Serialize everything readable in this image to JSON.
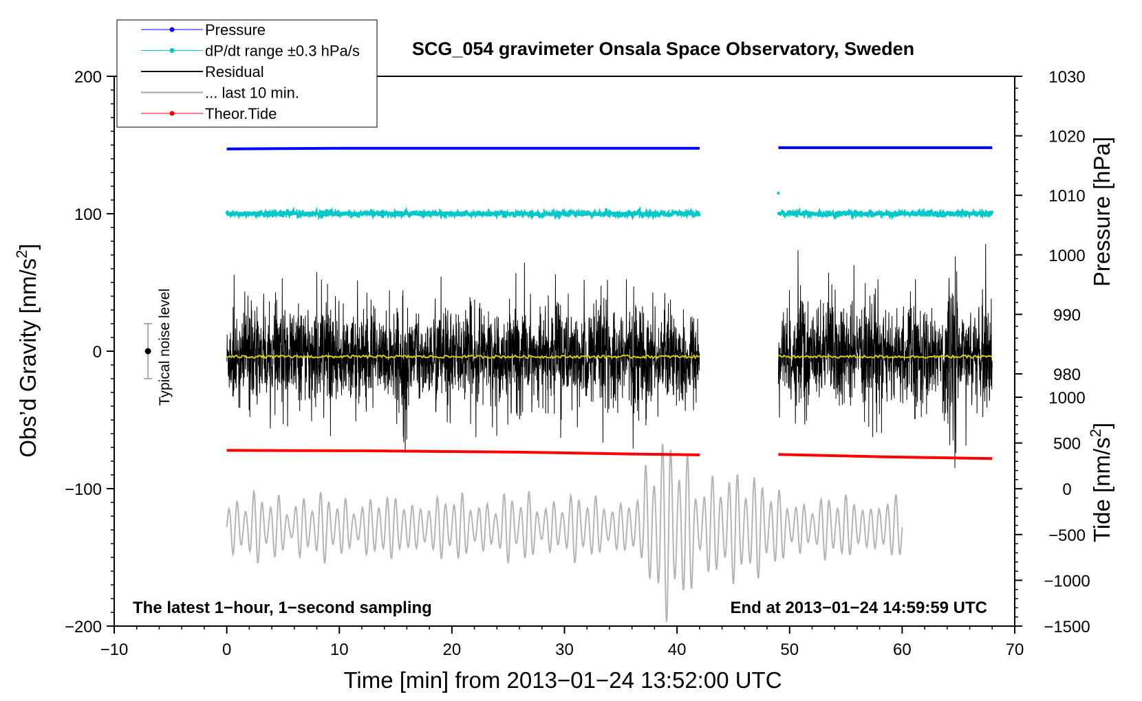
{
  "chart_data": {
    "type": "line",
    "title": "SCG_054 gravimeter Onsala Space Observatory, Sweden",
    "xlabel": "Time [min] from 2013−01−24 13:52:00 UTC",
    "ylabel_left": "Obs’d Gravity [nm/s",
    "ylabel_left_sup": "2",
    "ylabel_left_close": "]",
    "ylabel_pressure": "Pressure [hPa]",
    "ylabel_tide": "Tide [nm/s",
    "ylabel_tide_sup": "2",
    "ylabel_tide_close": "]",
    "xlim": [
      -10,
      70
    ],
    "ylim": [
      -200,
      200
    ],
    "x_ticks": [
      -10,
      0,
      10,
      20,
      30,
      40,
      50,
      60,
      70
    ],
    "x_tick_labels": [
      "−10",
      "0",
      "10",
      "20",
      "30",
      "40",
      "50",
      "60",
      "70"
    ],
    "y_ticks": [
      -200,
      -100,
      0,
      100,
      200
    ],
    "y_tick_labels": [
      "−200",
      "−100",
      "0",
      "100",
      "200"
    ],
    "pressure_axis": {
      "range": [
        970,
        1030
      ],
      "ticks": [
        980,
        990,
        1000,
        1010,
        1020,
        1030
      ],
      "tick_labels": [
        "980",
        "990",
        "1000",
        "1010",
        "1020",
        "1030"
      ]
    },
    "tide_axis": {
      "range": [
        -1500,
        1500
      ],
      "ticks": [
        -1500,
        -1000,
        -500,
        0,
        500,
        1000
      ],
      "tick_labels": [
        "−1500",
        "−1000",
        "−500",
        "0",
        "500",
        "1000"
      ]
    },
    "segments": [
      [
        0,
        42
      ],
      [
        49,
        68
      ]
    ],
    "legend": [
      {
        "label": "Pressure",
        "color": "#0000ff",
        "marker": true
      },
      {
        "label": "dP/dt range ±0.3 hPa/s",
        "color": "#00c8c8",
        "marker": true
      },
      {
        "label": "Residual",
        "color": "#000000",
        "marker": false
      },
      {
        "label": "... last 10 min.",
        "color": "#b4b4b4",
        "marker": false
      },
      {
        "label": "Theor.Tide",
        "color": "#ff0000",
        "marker": true
      }
    ],
    "series": [
      {
        "name": "Pressure",
        "axis": "pressure",
        "color": "#0000ff",
        "points": [
          [
            0,
            1017.8
          ],
          [
            10,
            1017.9
          ],
          [
            20,
            1017.9
          ],
          [
            30,
            1017.9
          ],
          [
            42,
            1017.9
          ],
          [
            49,
            1018.0
          ],
          [
            58,
            1018.0
          ],
          [
            68,
            1018.0
          ]
        ]
      },
      {
        "name": "dP/dt range ±0.3 hPa/s",
        "axis": "left",
        "color": "#00c8c8",
        "center": 100,
        "noise": 2
      },
      {
        "name": "Residual",
        "axis": "left",
        "color": "#000000",
        "center": 0,
        "amplitude_typical": 25,
        "amplitude_max": 75
      },
      {
        "name": "Residual mean",
        "axis": "left",
        "color": "#d2d200",
        "center": -4
      },
      {
        "name": "... last 10 min.",
        "axis": "left",
        "color": "#b4b4b4",
        "x_range": [
          0,
          60
        ],
        "center": -128,
        "amplitude_typical": 25,
        "amplitude_max": 70
      },
      {
        "name": "Theor.Tide",
        "axis": "tide",
        "color": "#ff0000",
        "points": [
          [
            0,
            420
          ],
          [
            12,
            415
          ],
          [
            26,
            400
          ],
          [
            36,
            380
          ],
          [
            42,
            370
          ],
          [
            49,
            375
          ],
          [
            58,
            350
          ],
          [
            68,
            330
          ]
        ]
      }
    ],
    "noise_indicator": {
      "label": "Typical noise level",
      "x": -7,
      "center": 0,
      "range": [
        -20,
        20
      ]
    },
    "annotations": {
      "bottom_left": "The latest 1−hour, 1−second sampling",
      "bottom_right": "End at 2013−01−24 14:59:59 UTC"
    }
  }
}
